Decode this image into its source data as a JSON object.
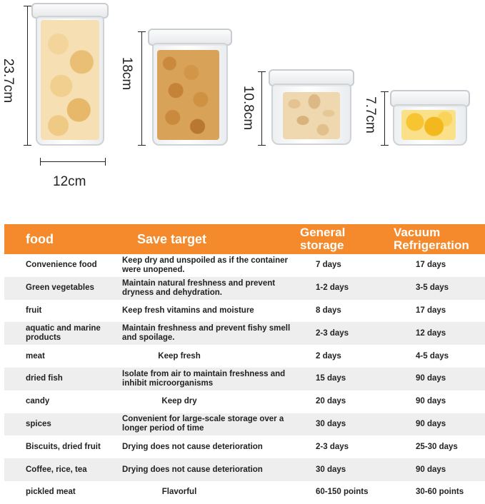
{
  "dimensions": {
    "height_1": "23.7cm",
    "width_1": "12cm",
    "height_2": "18cm",
    "height_3": "10.8cm",
    "height_4": "7.7cm"
  },
  "colors": {
    "header_bg": "#f48a2c",
    "header_text": "#ffffff",
    "alt_row_bg": "#eeeeee"
  },
  "table": {
    "headers": {
      "food": "food",
      "save_target": "Save target",
      "general_storage": "General storage",
      "vacuum_refrigeration": "Vacuum Refrigeration"
    },
    "rows": [
      {
        "food": "Convenience food",
        "target": "Keep dry and unspoiled as if the container were unopened.",
        "general": "7 days",
        "vacuum": "17 days"
      },
      {
        "food": "Green vegetables",
        "target": "Maintain natural freshness and prevent dryness and dehydration.",
        "general": "1-2 days",
        "vacuum": "3-5 days"
      },
      {
        "food": "fruit",
        "target": "Keep fresh vitamins and moisture",
        "general": "8 days",
        "vacuum": "17 days"
      },
      {
        "food": "aquatic and marine products",
        "target": "Maintain freshness and prevent fishy smell and spoilage.",
        "general": "2-3 days",
        "vacuum": "12 days"
      },
      {
        "food": "meat",
        "target": "Keep fresh",
        "general": "2 days",
        "vacuum": "4-5 days"
      },
      {
        "food": "dried fish",
        "target": "Isolate from air to maintain freshness and inhibit microorganisms",
        "general": "15 days",
        "vacuum": "90 days"
      },
      {
        "food": "candy",
        "target": "Keep dry",
        "general": "20 days",
        "vacuum": "90 days"
      },
      {
        "food": "spices",
        "target": "Convenient for large-scale storage over a longer period of time",
        "general": "30 days",
        "vacuum": "90 days"
      },
      {
        "food": "Biscuits, dried fruit",
        "target": "Drying does not cause deterioration",
        "general": "2-3 days",
        "vacuum": "25-30 days"
      },
      {
        "food": "Coffee, rice, tea",
        "target": "Drying does not cause deterioration",
        "general": "30 days",
        "vacuum": "90 days"
      },
      {
        "food": "pickled meat",
        "target": "Flavorful",
        "general": "60-150 points",
        "vacuum": "30-60 points"
      }
    ]
  }
}
